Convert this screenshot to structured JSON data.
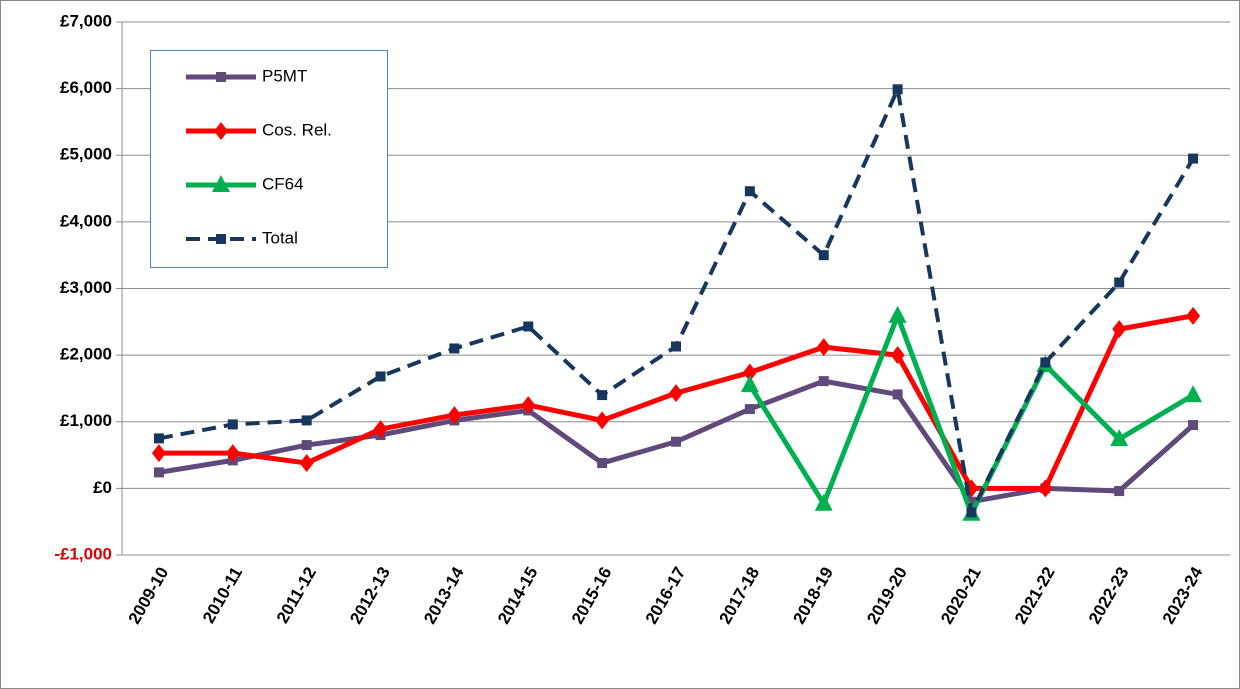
{
  "chart_data": {
    "type": "line",
    "categories": [
      "2009-10",
      "2010-11",
      "2011-12",
      "2012-13",
      "2013-14",
      "2014-15",
      "2015-16",
      "2016-17",
      "2017-18",
      "2018-19",
      "2019-20",
      "2020-21",
      "2021-22",
      "2022-23",
      "2023-24"
    ],
    "series": [
      {
        "name": "P5MT",
        "color": "#604a7b",
        "marker": "square",
        "values": [
          240,
          420,
          650,
          800,
          1020,
          1170,
          380,
          700,
          1190,
          1610,
          1410,
          -200,
          0,
          -40,
          950
        ]
      },
      {
        "name": "Cos. Rel.",
        "color": "#ff0000",
        "marker": "diamond",
        "values": [
          530,
          530,
          380,
          890,
          1100,
          1250,
          1020,
          1430,
          1740,
          2120,
          2000,
          0,
          0,
          2390,
          2590
        ]
      },
      {
        "name": "CF64",
        "color": "#00b050",
        "marker": "triangle",
        "values": [
          null,
          null,
          null,
          null,
          null,
          null,
          null,
          null,
          1550,
          -230,
          2590,
          -380,
          1850,
          740,
          1400
        ]
      },
      {
        "name": "Total",
        "color": "#17375e",
        "marker": "square",
        "dashed": true,
        "values": [
          750,
          960,
          1020,
          1680,
          2100,
          2430,
          1400,
          2130,
          4460,
          3500,
          5990,
          -360,
          1890,
          3090,
          4950
        ]
      }
    ],
    "ylim": [
      -1000,
      7000
    ],
    "yticks": [
      {
        "value": -1000,
        "label": "-£1,000"
      },
      {
        "value": 0,
        "label": "£0"
      },
      {
        "value": 1000,
        "label": "£1,000"
      },
      {
        "value": 2000,
        "label": "£2,000"
      },
      {
        "value": 3000,
        "label": "£3,000"
      },
      {
        "value": 4000,
        "label": "£4,000"
      },
      {
        "value": 5000,
        "label": "£5,000"
      },
      {
        "value": 6000,
        "label": "£6,000"
      },
      {
        "value": 7000,
        "label": "£7,000"
      }
    ],
    "negative_tick_color": "#e00000",
    "grid": true,
    "legend": "upper left"
  }
}
